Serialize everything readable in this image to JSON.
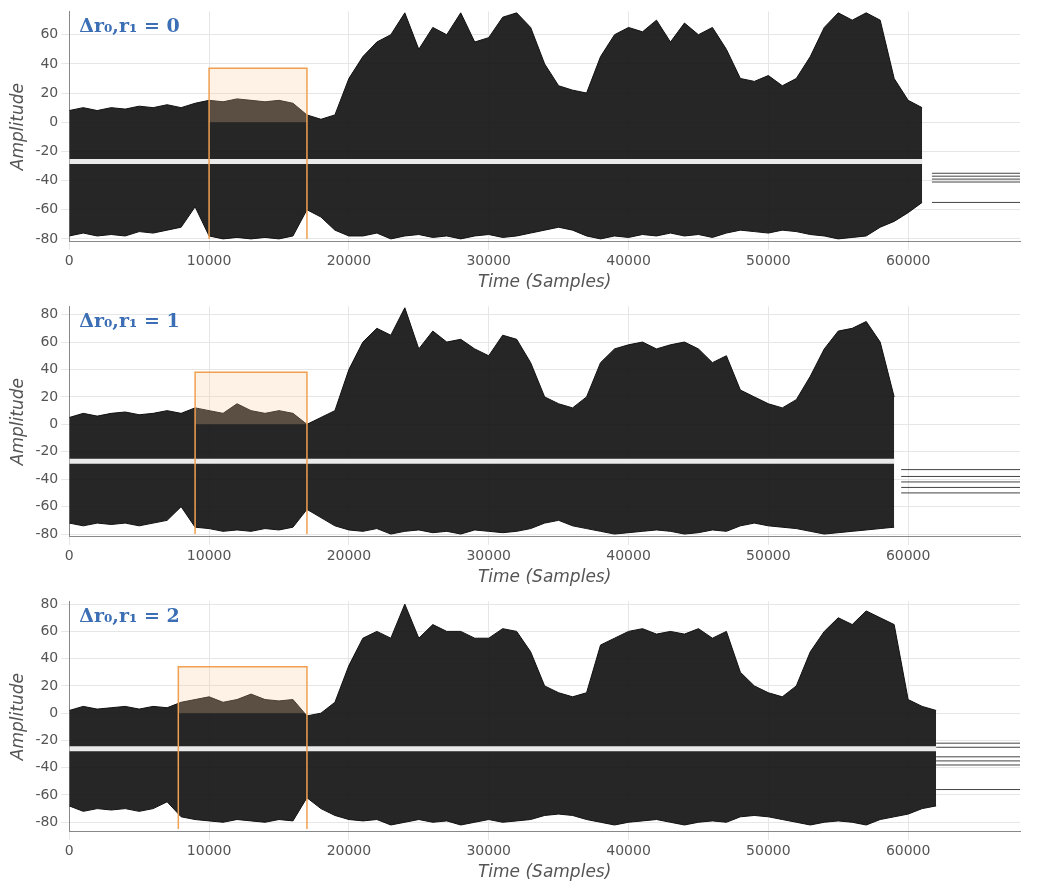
{
  "chart_data": [
    {
      "type": "line",
      "title": "Δr₀,r₁ = 0",
      "x_label": "Time (Samples)",
      "y_label": "Amplitude",
      "xlim": [
        0,
        68000
      ],
      "xticks": [
        0,
        10000,
        20000,
        30000,
        40000,
        50000,
        60000
      ],
      "ylim": [
        -82,
        76
      ],
      "yticks": [
        -80,
        -60,
        -40,
        -20,
        0,
        20,
        40,
        60
      ],
      "grid": true,
      "color": "#111111",
      "x": [
        0,
        1000,
        2000,
        3000,
        4000,
        5000,
        6000,
        7000,
        8000,
        9000,
        10000,
        11000,
        12000,
        13000,
        14000,
        15000,
        16000,
        17000,
        18000,
        19000,
        20000,
        21000,
        22000,
        23000,
        24000,
        25000,
        26000,
        27000,
        28000,
        29000,
        30000,
        31000,
        32000,
        33000,
        34000,
        35000,
        36000,
        37000,
        38000,
        39000,
        40000,
        41000,
        42000,
        43000,
        44000,
        45000,
        46000,
        47000,
        48000,
        49000,
        50000,
        51000,
        52000,
        53000,
        54000,
        55000,
        56000,
        57000,
        58000,
        59000,
        60000,
        61000
      ],
      "upper": [
        8,
        10,
        8,
        10,
        9,
        11,
        10,
        12,
        10,
        13,
        15,
        14,
        16,
        15,
        14,
        15,
        13,
        5,
        2,
        5,
        30,
        45,
        55,
        60,
        75,
        50,
        65,
        60,
        75,
        55,
        58,
        72,
        75,
        65,
        40,
        25,
        22,
        20,
        45,
        60,
        65,
        62,
        70,
        55,
        68,
        60,
        65,
        50,
        30,
        28,
        32,
        25,
        30,
        45,
        65,
        75,
        70,
        75,
        70,
        30,
        15,
        10
      ],
      "lower": [
        -78,
        -76,
        -78,
        -77,
        -78,
        -75,
        -76,
        -74,
        -72,
        -58,
        -78,
        -80,
        -79,
        -80,
        -79,
        -80,
        -78,
        -60,
        -65,
        -74,
        -78,
        -78,
        -76,
        -80,
        -78,
        -77,
        -79,
        -78,
        -80,
        -78,
        -77,
        -79,
        -78,
        -76,
        -74,
        -72,
        -74,
        -78,
        -80,
        -78,
        -79,
        -77,
        -78,
        -76,
        -78,
        -77,
        -79,
        -76,
        -74,
        -75,
        -76,
        -74,
        -75,
        -77,
        -78,
        -80,
        -79,
        -78,
        -72,
        -68,
        -62,
        -55
      ],
      "center": -27,
      "highlight": {
        "x": [
          10000,
          17000
        ],
        "y": [
          -80,
          37
        ]
      },
      "tail": {
        "x": [
          61700,
          68000
        ],
        "levels": [
          -35,
          -37,
          -39,
          -41,
          -55
        ]
      }
    },
    {
      "type": "line",
      "title": "Δr₀,r₁ = 1",
      "x_label": "Time (Samples)",
      "y_label": "Amplitude",
      "xlim": [
        0,
        68000
      ],
      "xticks": [
        0,
        10000,
        20000,
        30000,
        40000,
        50000,
        60000
      ],
      "ylim": [
        -82,
        86
      ],
      "yticks": [
        -80,
        -60,
        -40,
        -20,
        0,
        20,
        40,
        60,
        80
      ],
      "grid": true,
      "color": "#111111",
      "x": [
        0,
        1000,
        2000,
        3000,
        4000,
        5000,
        6000,
        7000,
        8000,
        9000,
        10000,
        11000,
        12000,
        13000,
        14000,
        15000,
        16000,
        17000,
        18000,
        19000,
        20000,
        21000,
        22000,
        23000,
        24000,
        25000,
        26000,
        27000,
        28000,
        29000,
        30000,
        31000,
        32000,
        33000,
        34000,
        35000,
        36000,
        37000,
        38000,
        39000,
        40000,
        41000,
        42000,
        43000,
        44000,
        45000,
        46000,
        47000,
        48000,
        49000,
        50000,
        51000,
        52000,
        53000,
        54000,
        55000,
        56000,
        57000,
        58000,
        59000
      ],
      "upper": [
        5,
        8,
        6,
        8,
        9,
        7,
        8,
        10,
        8,
        12,
        10,
        8,
        15,
        10,
        8,
        10,
        8,
        0,
        5,
        10,
        40,
        60,
        70,
        65,
        85,
        55,
        68,
        60,
        62,
        55,
        50,
        65,
        62,
        45,
        20,
        15,
        12,
        20,
        45,
        55,
        58,
        60,
        55,
        58,
        60,
        55,
        45,
        50,
        25,
        20,
        15,
        12,
        18,
        35,
        55,
        68,
        70,
        75,
        60,
        20
      ],
      "lower": [
        -72,
        -74,
        -72,
        -73,
        -72,
        -74,
        -72,
        -70,
        -60,
        -75,
        -76,
        -78,
        -77,
        -78,
        -76,
        -77,
        -75,
        -62,
        -68,
        -74,
        -77,
        -78,
        -76,
        -80,
        -78,
        -77,
        -79,
        -78,
        -80,
        -77,
        -78,
        -79,
        -78,
        -76,
        -72,
        -70,
        -74,
        -76,
        -78,
        -80,
        -79,
        -78,
        -77,
        -78,
        -80,
        -79,
        -77,
        -78,
        -74,
        -72,
        -74,
        -75,
        -76,
        -78,
        -80,
        -79,
        -78,
        -77,
        -76,
        -75
      ],
      "center": -27,
      "highlight": {
        "x": [
          9000,
          17000
        ],
        "y": [
          -80,
          38
        ]
      },
      "tail": {
        "x": [
          59500,
          68000
        ],
        "levels": [
          -33,
          -38,
          -42,
          -46,
          -50
        ]
      }
    },
    {
      "type": "line",
      "title": "Δr₀,r₁ = 2",
      "x_label": "Time (Samples)",
      "y_label": "Amplitude",
      "xlim": [
        0,
        68000
      ],
      "xticks": [
        0,
        10000,
        20000,
        30000,
        40000,
        50000,
        60000
      ],
      "ylim": [
        -87,
        82
      ],
      "yticks": [
        -80,
        -60,
        -40,
        -20,
        0,
        20,
        40,
        60,
        80
      ],
      "grid": true,
      "color": "#111111",
      "x": [
        0,
        1000,
        2000,
        3000,
        4000,
        5000,
        6000,
        7000,
        8000,
        9000,
        10000,
        11000,
        12000,
        13000,
        14000,
        15000,
        16000,
        17000,
        18000,
        19000,
        20000,
        21000,
        22000,
        23000,
        24000,
        25000,
        26000,
        27000,
        28000,
        29000,
        30000,
        31000,
        32000,
        33000,
        34000,
        35000,
        36000,
        37000,
        38000,
        39000,
        40000,
        41000,
        42000,
        43000,
        44000,
        45000,
        46000,
        47000,
        48000,
        49000,
        50000,
        51000,
        52000,
        53000,
        54000,
        55000,
        56000,
        57000,
        58000,
        59000,
        60000,
        61000,
        62000
      ],
      "upper": [
        2,
        5,
        3,
        4,
        5,
        3,
        5,
        4,
        8,
        10,
        12,
        8,
        10,
        14,
        10,
        9,
        10,
        -2,
        0,
        8,
        35,
        55,
        60,
        55,
        80,
        55,
        65,
        60,
        60,
        55,
        55,
        62,
        60,
        45,
        20,
        15,
        12,
        15,
        50,
        55,
        60,
        62,
        58,
        60,
        58,
        62,
        55,
        60,
        30,
        20,
        15,
        12,
        20,
        45,
        60,
        70,
        65,
        75,
        70,
        65,
        10,
        5,
        2
      ],
      "lower": [
        -68,
        -72,
        -70,
        -71,
        -70,
        -72,
        -70,
        -65,
        -76,
        -78,
        -79,
        -80,
        -78,
        -79,
        -80,
        -78,
        -79,
        -62,
        -70,
        -75,
        -78,
        -79,
        -78,
        -82,
        -80,
        -78,
        -80,
        -79,
        -82,
        -80,
        -78,
        -80,
        -79,
        -78,
        -75,
        -74,
        -75,
        -78,
        -80,
        -82,
        -80,
        -79,
        -78,
        -80,
        -82,
        -80,
        -79,
        -80,
        -76,
        -75,
        -76,
        -78,
        -80,
        -82,
        -80,
        -79,
        -80,
        -82,
        -78,
        -76,
        -74,
        -70,
        -68
      ],
      "center": -26,
      "highlight": {
        "x": [
          7800,
          17000
        ],
        "y": [
          -85,
          34
        ]
      },
      "tail": {
        "x": [
          62000,
          68000
        ],
        "levels": [
          -22,
          -25,
          -32,
          -35,
          -38,
          -56
        ]
      }
    }
  ]
}
